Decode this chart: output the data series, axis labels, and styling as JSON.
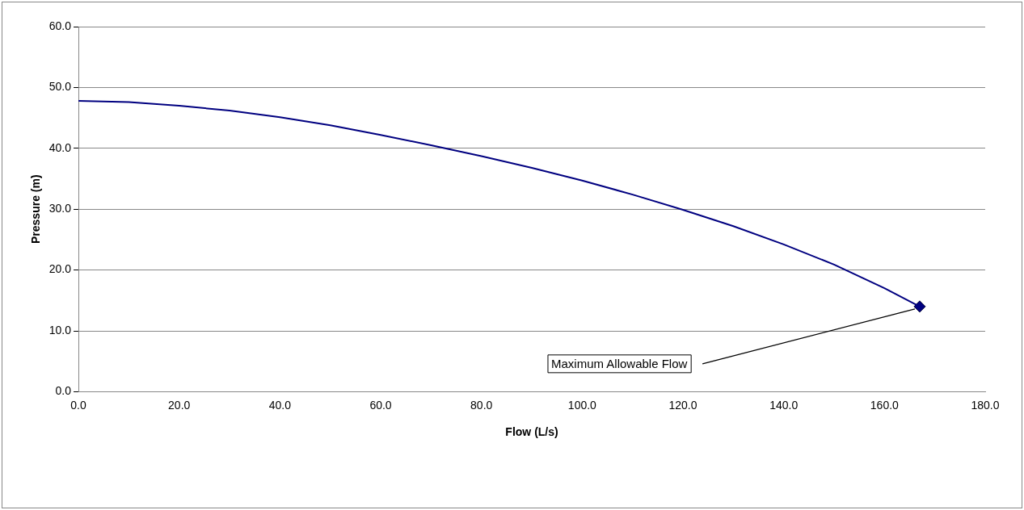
{
  "chart_data": {
    "type": "line",
    "xlabel": "Flow (L/s)",
    "ylabel": "Pressure (m)",
    "xlim": [
      0,
      180
    ],
    "ylim": [
      0,
      60
    ],
    "xticks": [
      {
        "value": 0,
        "label": "0.0"
      },
      {
        "value": 20,
        "label": "20.0"
      },
      {
        "value": 40,
        "label": "40.0"
      },
      {
        "value": 60,
        "label": "60.0"
      },
      {
        "value": 80,
        "label": "80.0"
      },
      {
        "value": 100,
        "label": "100.0"
      },
      {
        "value": 120,
        "label": "120.0"
      },
      {
        "value": 140,
        "label": "140.0"
      },
      {
        "value": 160,
        "label": "160.0"
      },
      {
        "value": 180,
        "label": "180.0"
      }
    ],
    "yticks": [
      {
        "value": 0,
        "label": "0.0"
      },
      {
        "value": 10,
        "label": "10.0"
      },
      {
        "value": 20,
        "label": "20.0"
      },
      {
        "value": 30,
        "label": "30.0"
      },
      {
        "value": 40,
        "label": "40.0"
      },
      {
        "value": 50,
        "label": "50.0"
      },
      {
        "value": 60,
        "label": "60.0"
      }
    ],
    "grid": "y",
    "legend": false,
    "series": [
      {
        "color": "#000080",
        "marker": "none",
        "x": [
          0,
          10,
          20,
          30,
          40,
          50,
          60,
          70,
          80,
          90,
          100,
          110,
          120,
          130,
          140,
          150,
          160,
          167
        ],
        "values": [
          47.8,
          47.6,
          47.0,
          46.2,
          45.1,
          43.8,
          42.2,
          40.5,
          38.7,
          36.8,
          34.7,
          32.4,
          29.9,
          27.2,
          24.2,
          20.9,
          17.0,
          14.0
        ]
      },
      {
        "type": "scatter",
        "color": "#000080",
        "marker": "diamond",
        "x": [
          167
        ],
        "values": [
          14.0
        ]
      }
    ],
    "annotations": [
      {
        "text": "Maximum Allowable Flow",
        "x": 167,
        "y": 14
      }
    ]
  }
}
